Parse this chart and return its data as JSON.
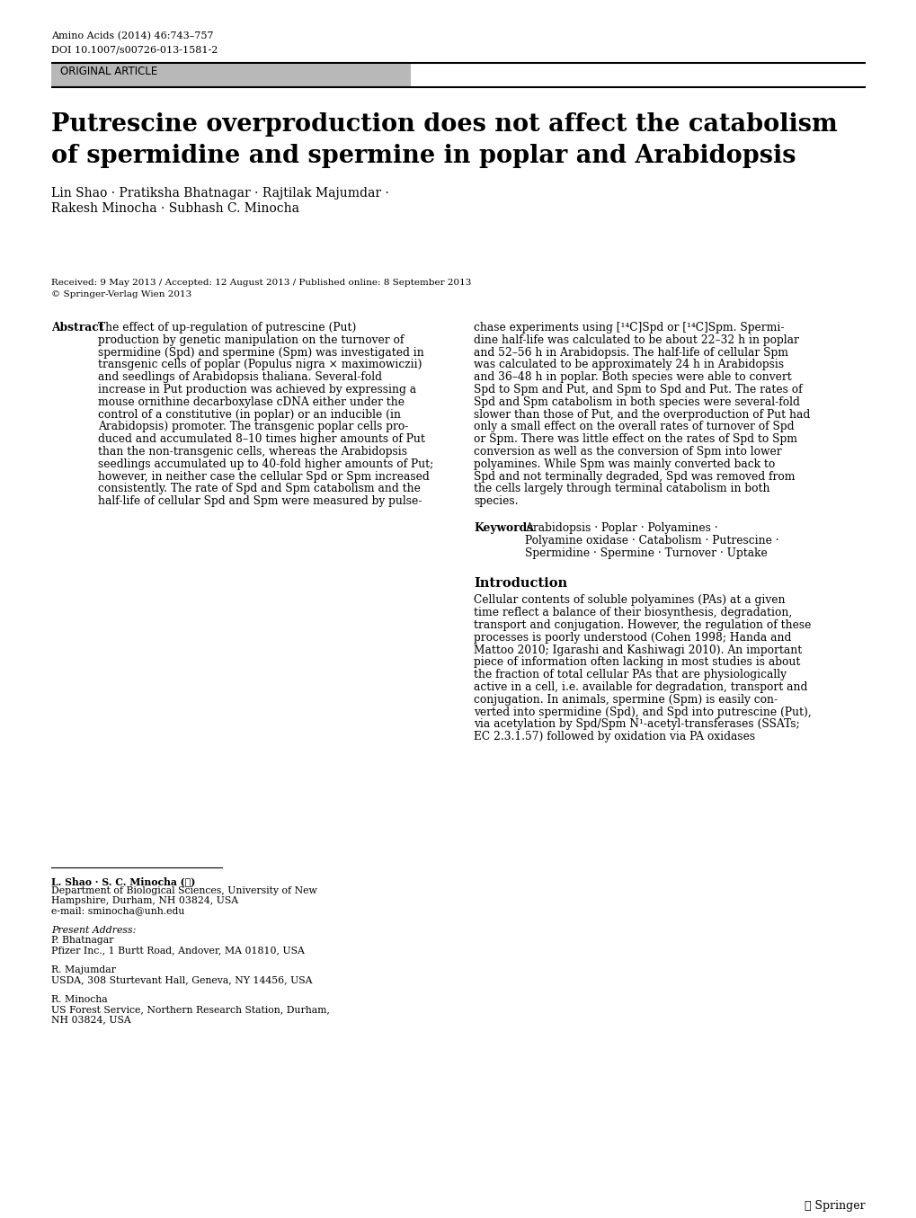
{
  "journal_info_line1": "Amino Acids (2014) 46:743–757",
  "journal_info_line2": "DOI 10.1007/s00726-013-1581-2",
  "article_type": "ORIGINAL ARTICLE",
  "title_line1": "Putrescine overproduction does not affect the catabolism",
  "title_line2": "of spermidine and spermine in poplar and Arabidopsis",
  "authors_line1": "Lin Shao · Pratiksha Bhatnagar · Rajtilak Majumdar ·",
  "authors_line2": "Rakesh Minocha · Subhash C. Minocha",
  "received": "Received: 9 May 2013 / Accepted: 12 August 2013 / Published online: 8 September 2013",
  "copyright": "© Springer-Verlag Wien 2013",
  "abstract_label": "Abstract",
  "keywords_label": "Keywords",
  "intro_header": "Introduction",
  "footnote_author": "L. Shao · S. C. Minocha (✉)",
  "footnote_dept": "Department of Biological Sciences, University of New",
  "footnote_univ": "Hampshire, Durham, NH 03824, USA",
  "footnote_email": "e-mail: sminocha@unh.edu",
  "footnote_present": "Present Address:",
  "footnote_bhatnagar": "P. Bhatnagar",
  "footnote_pfizer": "Pfizer Inc., 1 Burtt Road, Andover, MA 01810, USA",
  "footnote_majumdar": "R. Majumdar",
  "footnote_usda": "USDA, 308 Sturtevant Hall, Geneva, NY 14456, USA",
  "footnote_minocha": "R. Minocha",
  "footnote_usfs": "US Forest Service, Northern Research Station, Durham,",
  "footnote_nh": "NH 03824, USA",
  "springer_logo": "⑥ Springer",
  "bg_color": "#ffffff",
  "text_color": "#000000",
  "gray_box_color": "#b8b8b8",
  "header_line_color": "#000000",
  "abstract_left_lines": [
    "The effect of up-regulation of putrescine (Put)",
    "production by genetic manipulation on the turnover of",
    "spermidine (Spd) and spermine (Spm) was investigated in",
    "transgenic cells of poplar (Populus nigra × maximowiczii)",
    "and seedlings of Arabidopsis thaliana. Several-fold",
    "increase in Put production was achieved by expressing a",
    "mouse ornithine decarboxylase cDNA either under the",
    "control of a constitutive (in poplar) or an inducible (in",
    "Arabidopsis) promoter. The transgenic poplar cells pro-",
    "duced and accumulated 8–10 times higher amounts of Put",
    "than the non-transgenic cells, whereas the Arabidopsis",
    "seedlings accumulated up to 40-fold higher amounts of Put;",
    "however, in neither case the cellular Spd or Spm increased",
    "consistently. The rate of Spd and Spm catabolism and the",
    "half-life of cellular Spd and Spm were measured by pulse-"
  ],
  "abstract_right_lines": [
    "chase experiments using [¹⁴C]Spd or [¹⁴C]Spm. Spermi-",
    "dine half-life was calculated to be about 22–32 h in poplar",
    "and 52–56 h in Arabidopsis. The half-life of cellular Spm",
    "was calculated to be approximately 24 h in Arabidopsis",
    "and 36–48 h in poplar. Both species were able to convert",
    "Spd to Spm and Put, and Spm to Spd and Put. The rates of",
    "Spd and Spm catabolism in both species were several-fold",
    "slower than those of Put, and the overproduction of Put had",
    "only a small effect on the overall rates of turnover of Spd",
    "or Spm. There was little effect on the rates of Spd to Spm",
    "conversion as well as the conversion of Spm into lower",
    "polyamines. While Spm was mainly converted back to",
    "Spd and not terminally degraded, Spd was removed from",
    "the cells largely through terminal catabolism in both",
    "species."
  ],
  "kw_lines": [
    "Arabidopsis · Poplar · Polyamines ·",
    "Polyamine oxidase · Catabolism · Putrescine ·",
    "Spermidine · Spermine · Turnover · Uptake"
  ],
  "intro_lines": [
    "Cellular contents of soluble polyamines (PAs) at a given",
    "time reflect a balance of their biosynthesis, degradation,",
    "transport and conjugation. However, the regulation of these",
    "processes is poorly understood (Cohen 1998; Handa and",
    "Mattoo 2010; Igarashi and Kashiwagi 2010). An important",
    "piece of information often lacking in most studies is about",
    "the fraction of total cellular PAs that are physiologically",
    "active in a cell, i.e. available for degradation, transport and",
    "conjugation. In animals, spermine (Spm) is easily con-",
    "verted into spermidine (Spd), and Spd into putrescine (Put),",
    "via acetylation by Spd/Spm N¹-acetyl-transferases (SSATs;",
    "EC 2.3.1.57) followed by oxidation via PA oxidases"
  ]
}
